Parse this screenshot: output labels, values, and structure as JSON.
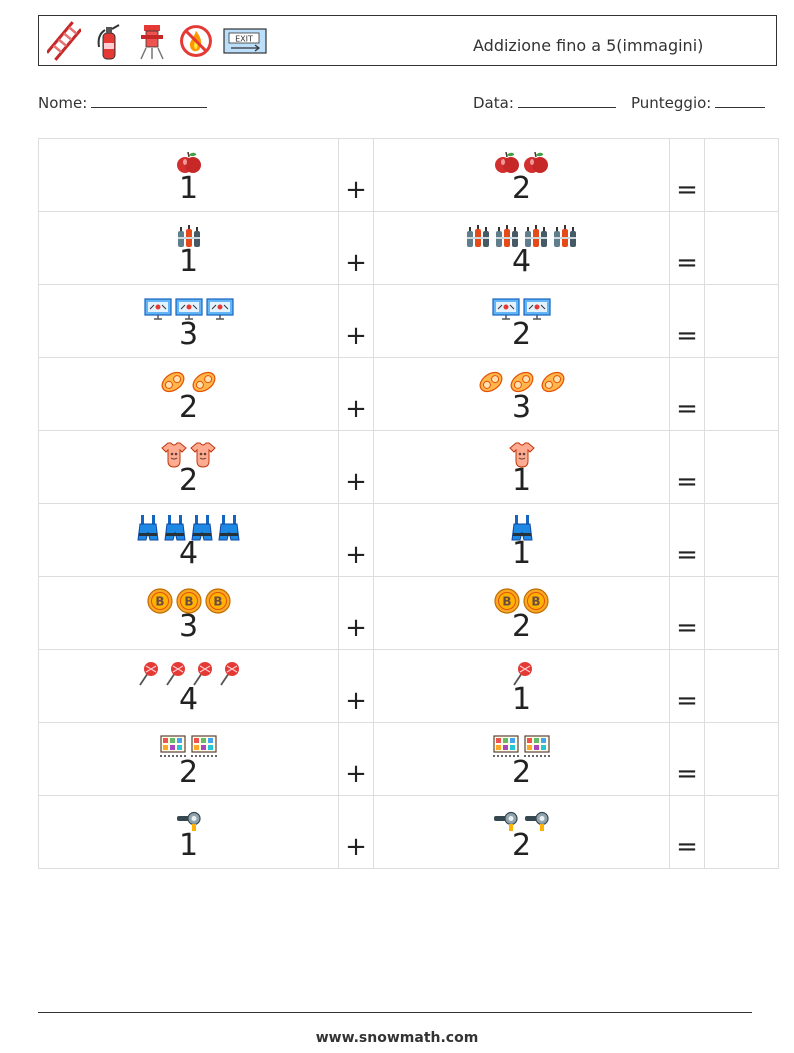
{
  "header": {
    "title": "Addizione fino a 5(immagini)",
    "icons": [
      "ladder-icon",
      "fire-extinguisher-icon",
      "fire-hydrant-icon",
      "no-fire-icon",
      "exit-sign-icon"
    ]
  },
  "fields": {
    "name_label": "Nome:",
    "date_label": "Data:",
    "score_label": "Punteggio:"
  },
  "operators": {
    "plus": "+",
    "equals": "="
  },
  "problems": [
    {
      "a": 1,
      "b": 2,
      "icon": "apple-icon"
    },
    {
      "a": 1,
      "b": 4,
      "icon": "gas-cylinders-icon"
    },
    {
      "a": 3,
      "b": 2,
      "icon": "fire-alarm-panel-icon"
    },
    {
      "a": 2,
      "b": 3,
      "icon": "hose-reel-icon"
    },
    {
      "a": 2,
      "b": 1,
      "icon": "baby-bodysuit-icon"
    },
    {
      "a": 4,
      "b": 1,
      "icon": "overalls-icon"
    },
    {
      "a": 3,
      "b": 2,
      "icon": "coin-icon"
    },
    {
      "a": 4,
      "b": 1,
      "icon": "lollipop-icon"
    },
    {
      "a": 2,
      "b": 2,
      "icon": "control-board-icon"
    },
    {
      "a": 1,
      "b": 2,
      "icon": "nozzle-icon"
    }
  ],
  "footer": {
    "website": "www.snowmath.com"
  }
}
